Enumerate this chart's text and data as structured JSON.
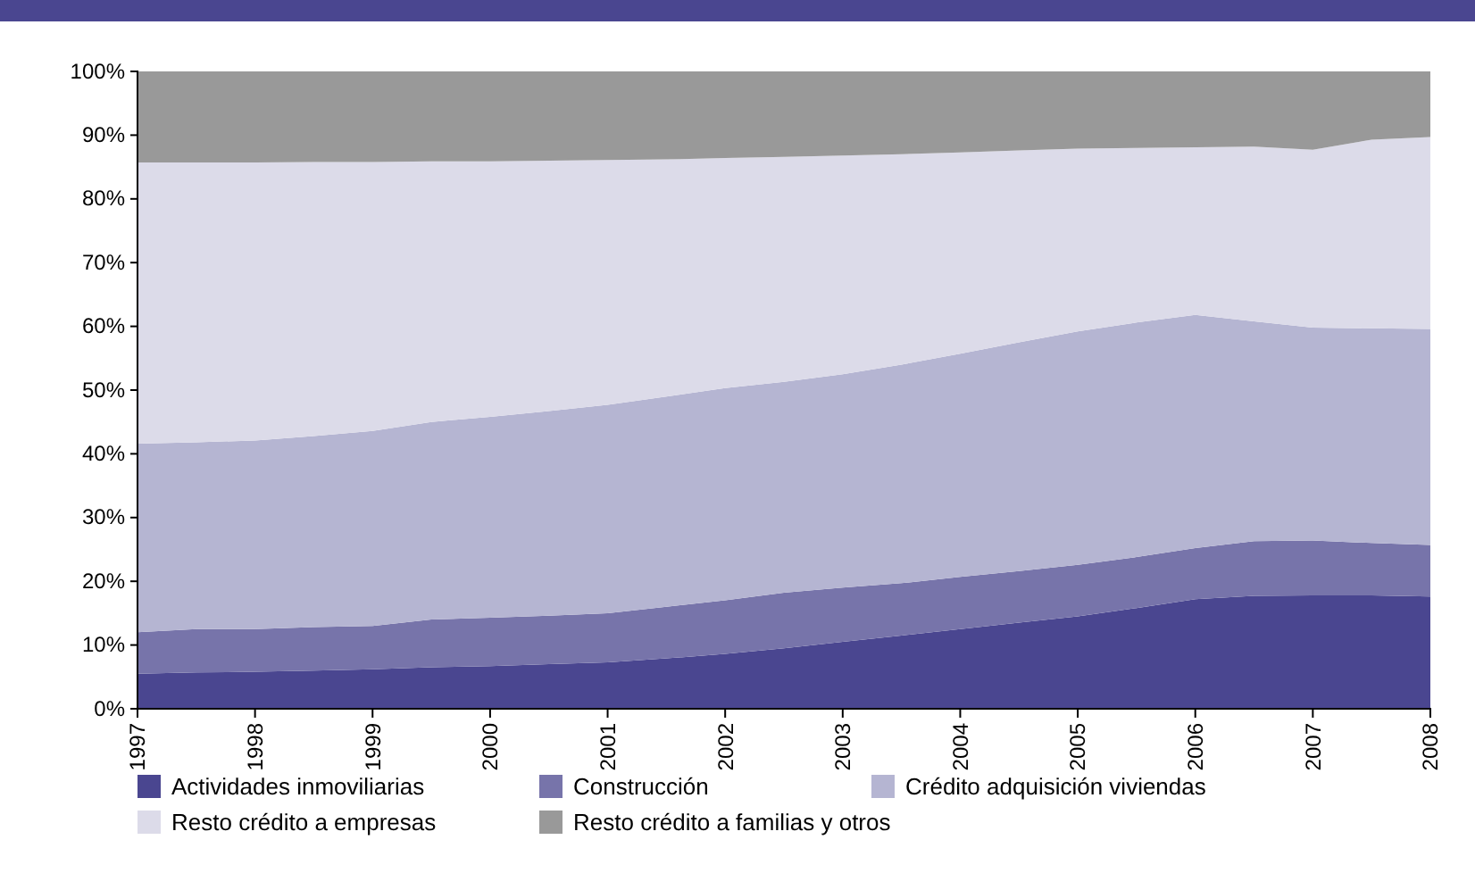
{
  "chart_data": {
    "type": "area",
    "stacked": true,
    "x": [
      1997,
      1997.5,
      1998,
      1998.5,
      1999,
      1999.5,
      2000,
      2000.5,
      2001,
      2001.5,
      2002,
      2002.5,
      2003,
      2003.5,
      2004,
      2004.5,
      2005,
      2005.5,
      2006,
      2006.5,
      2007,
      2007.5,
      2008
    ],
    "series": [
      {
        "name": "Actividades inmoviliarias",
        "color": "#4a4690",
        "values": [
          5.5,
          5.7,
          5.8,
          6.0,
          6.2,
          6.5,
          6.7,
          7.0,
          7.3,
          7.9,
          8.6,
          9.5,
          10.5,
          11.5,
          12.5,
          13.5,
          14.5,
          15.8,
          17.2,
          17.7,
          17.8,
          17.8,
          17.6
        ]
      },
      {
        "name": "Construcción",
        "color": "#7774aa",
        "values": [
          6.5,
          6.8,
          6.7,
          6.8,
          6.8,
          7.5,
          7.6,
          7.6,
          7.7,
          8.1,
          8.4,
          8.7,
          8.5,
          8.2,
          8.2,
          8.1,
          8.1,
          8.0,
          8.0,
          8.6,
          8.6,
          8.2,
          8.1
        ]
      },
      {
        "name": "Crédito adquisición viviendas",
        "color": "#b5b5d2",
        "values": [
          29.6,
          29.3,
          29.6,
          30.0,
          30.6,
          31.0,
          31.5,
          32.1,
          32.7,
          33.0,
          33.3,
          33.1,
          33.5,
          34.3,
          35.0,
          35.9,
          36.6,
          36.8,
          36.6,
          34.5,
          33.4,
          33.7,
          33.9
        ]
      },
      {
        "name": "Resto crédito a empresas",
        "color": "#dcdbe9",
        "values": [
          44.1,
          43.9,
          43.6,
          43.0,
          42.2,
          40.9,
          40.1,
          39.3,
          38.4,
          37.2,
          36.1,
          35.3,
          34.3,
          33.0,
          31.6,
          30.1,
          28.7,
          27.4,
          26.3,
          27.4,
          27.9,
          29.6,
          30.1
        ]
      },
      {
        "name": "Resto crédito a familias y otros",
        "color": "#999999",
        "values": [
          14.3,
          14.3,
          14.3,
          14.2,
          14.2,
          14.1,
          14.1,
          14.0,
          13.9,
          13.8,
          13.6,
          13.4,
          13.2,
          13.0,
          12.7,
          12.4,
          12.1,
          12.0,
          11.9,
          11.8,
          12.3,
          10.7,
          10.3
        ]
      }
    ],
    "xlim": [
      1997,
      2008
    ],
    "xticks": [
      1997,
      1998,
      1999,
      2000,
      2001,
      2002,
      2003,
      2004,
      2005,
      2006,
      2007,
      2008
    ],
    "ylim": [
      0,
      100
    ],
    "yticks": [
      {
        "value": 0,
        "label": "0%"
      },
      {
        "value": 10,
        "label": "10%"
      },
      {
        "value": 20,
        "label": "20%"
      },
      {
        "value": 30,
        "label": "30%"
      },
      {
        "value": 40,
        "label": "40%"
      },
      {
        "value": 50,
        "label": "50%"
      },
      {
        "value": 60,
        "label": "60%"
      },
      {
        "value": 70,
        "label": "70%"
      },
      {
        "value": 80,
        "label": "80%"
      },
      {
        "value": 90,
        "label": "90%"
      },
      {
        "value": 100,
        "label": "100%"
      }
    ],
    "grid": false,
    "legend": "bottom"
  }
}
